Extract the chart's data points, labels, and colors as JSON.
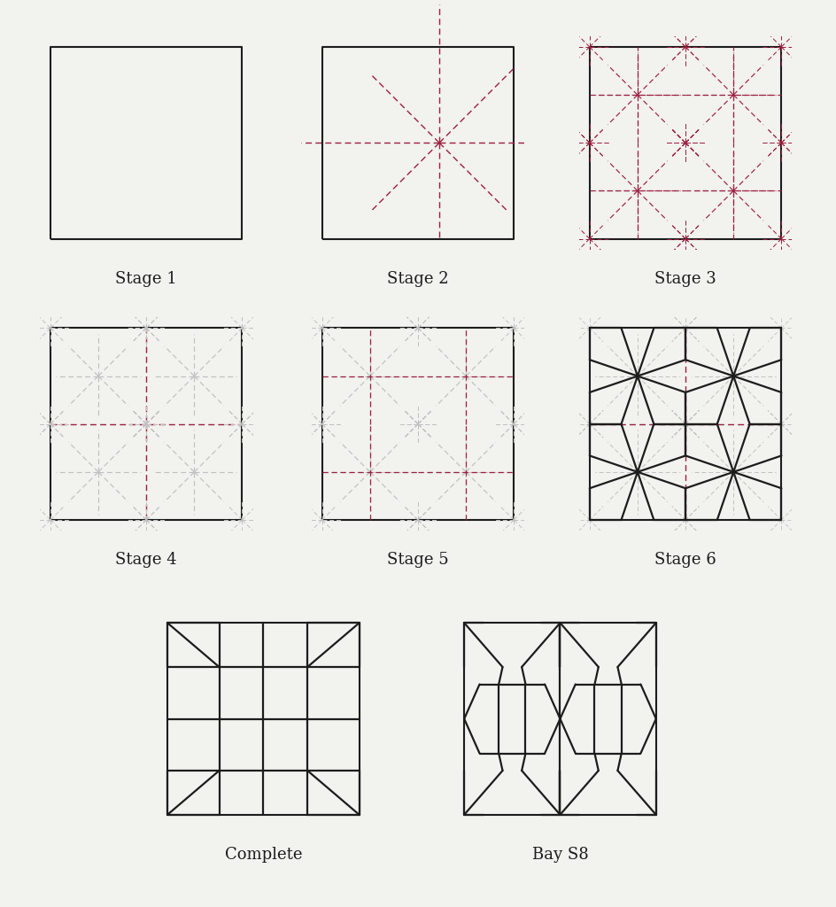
{
  "background_color": "#f2f2ee",
  "dark_red": "#9b2040",
  "gray": "#c0c0c0",
  "black": "#1c1c1c",
  "label_fontsize": 13,
  "panel_lw": 1.5,
  "vault_lw": 1.6,
  "dash": [
    5,
    3
  ],
  "panels": {
    "stage1": [
      0.04,
      0.725,
      0.27,
      0.235
    ],
    "stage2": [
      0.365,
      0.725,
      0.27,
      0.235
    ],
    "stage3": [
      0.685,
      0.725,
      0.27,
      0.235
    ],
    "stage4": [
      0.04,
      0.415,
      0.27,
      0.235
    ],
    "stage5": [
      0.365,
      0.415,
      0.27,
      0.235
    ],
    "stage6": [
      0.685,
      0.415,
      0.27,
      0.235
    ],
    "complete": [
      0.18,
      0.09,
      0.27,
      0.235
    ],
    "bays8": [
      0.535,
      0.09,
      0.27,
      0.235
    ]
  },
  "labels": {
    "stage1": "Stage 1",
    "stage2": "Stage 2",
    "stage3": "Stage 3",
    "stage4": "Stage 4",
    "stage5": "Stage 5",
    "stage6": "Stage 6",
    "complete": "Complete",
    "bays8": "Bay S8"
  }
}
